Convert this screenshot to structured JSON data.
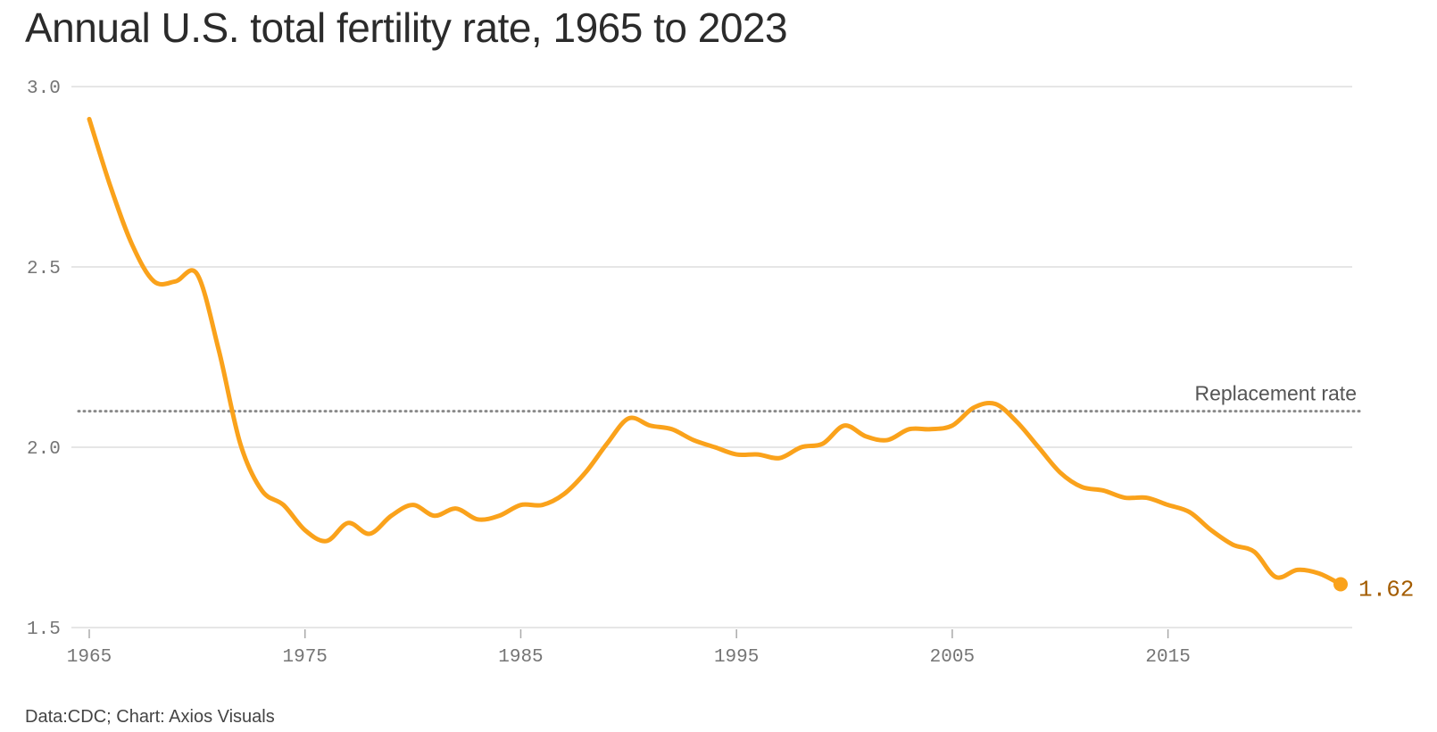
{
  "title": "Annual U.S. total fertility rate, 1965 to 2023",
  "source": "Data:CDC; Chart: Axios Visuals",
  "colors": {
    "line": "#faa21b",
    "end_label": "#a35c00",
    "grid": "#dedede",
    "reference": "#8a8a8a",
    "text": "#2b2b2b"
  },
  "chart_data": {
    "type": "line",
    "title": "Annual U.S. total fertility rate, 1965 to 2023",
    "xlim": [
      1965,
      2023
    ],
    "ylim": [
      1.5,
      3.0
    ],
    "yticks": [
      1.5,
      2.0,
      2.5,
      3.0
    ],
    "ytick_labels": [
      "1.5",
      "2.0",
      "2.5",
      "3.0"
    ],
    "xticks": [
      1965,
      1975,
      1985,
      1995,
      2005,
      2015
    ],
    "xtick_labels": [
      "1965",
      "1975",
      "1985",
      "1995",
      "2005",
      "2015"
    ],
    "grid": true,
    "series": [
      {
        "x": [
          1965,
          1966,
          1967,
          1968,
          1969,
          1970,
          1971,
          1972,
          1973,
          1974,
          1975,
          1976,
          1977,
          1978,
          1979,
          1980,
          1981,
          1982,
          1983,
          1984,
          1985,
          1986,
          1987,
          1988,
          1989,
          1990,
          1991,
          1992,
          1993,
          1994,
          1995,
          1996,
          1997,
          1998,
          1999,
          2000,
          2001,
          2002,
          2003,
          2004,
          2005,
          2006,
          2007,
          2008,
          2009,
          2010,
          2011,
          2012,
          2013,
          2014,
          2015,
          2016,
          2017,
          2018,
          2019,
          2020,
          2021,
          2022,
          2023
        ],
        "values": [
          2.91,
          2.72,
          2.56,
          2.46,
          2.46,
          2.48,
          2.27,
          2.01,
          1.88,
          1.84,
          1.77,
          1.74,
          1.79,
          1.76,
          1.81,
          1.84,
          1.81,
          1.83,
          1.8,
          1.81,
          1.84,
          1.84,
          1.87,
          1.93,
          2.01,
          2.08,
          2.06,
          2.05,
          2.02,
          2.0,
          1.98,
          1.98,
          1.97,
          2.0,
          2.01,
          2.06,
          2.03,
          2.02,
          2.05,
          2.05,
          2.06,
          2.11,
          2.12,
          2.07,
          2.0,
          1.93,
          1.89,
          1.88,
          1.86,
          1.86,
          1.84,
          1.82,
          1.77,
          1.73,
          1.71,
          1.64,
          1.66,
          1.65,
          1.62
        ]
      }
    ],
    "reference_line": {
      "value": 2.1,
      "label": "Replacement rate"
    },
    "end_label": "1.62"
  }
}
